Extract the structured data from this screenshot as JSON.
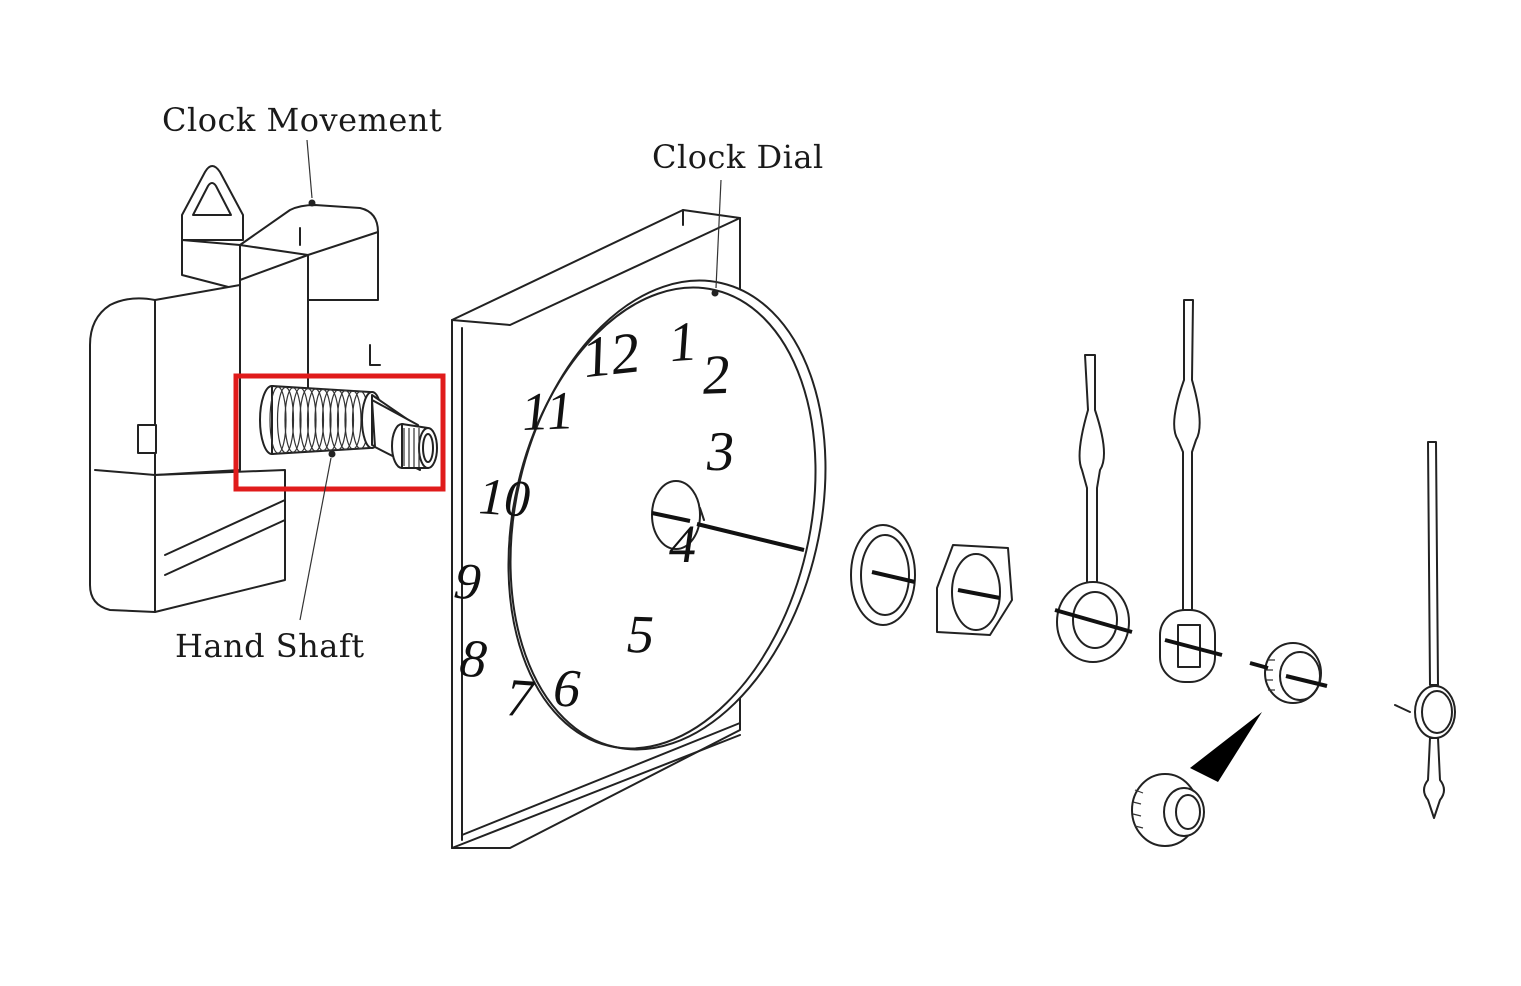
{
  "labels": {
    "clock_movement": "Clock Movement",
    "clock_dial": "Clock Dial",
    "hand_shaft": "Hand Shaft"
  },
  "dial_numbers": [
    "12",
    "1",
    "2",
    "3",
    "4",
    "5",
    "6",
    "7",
    "8",
    "9",
    "10",
    "11"
  ],
  "highlight_color": "#e01b1b"
}
